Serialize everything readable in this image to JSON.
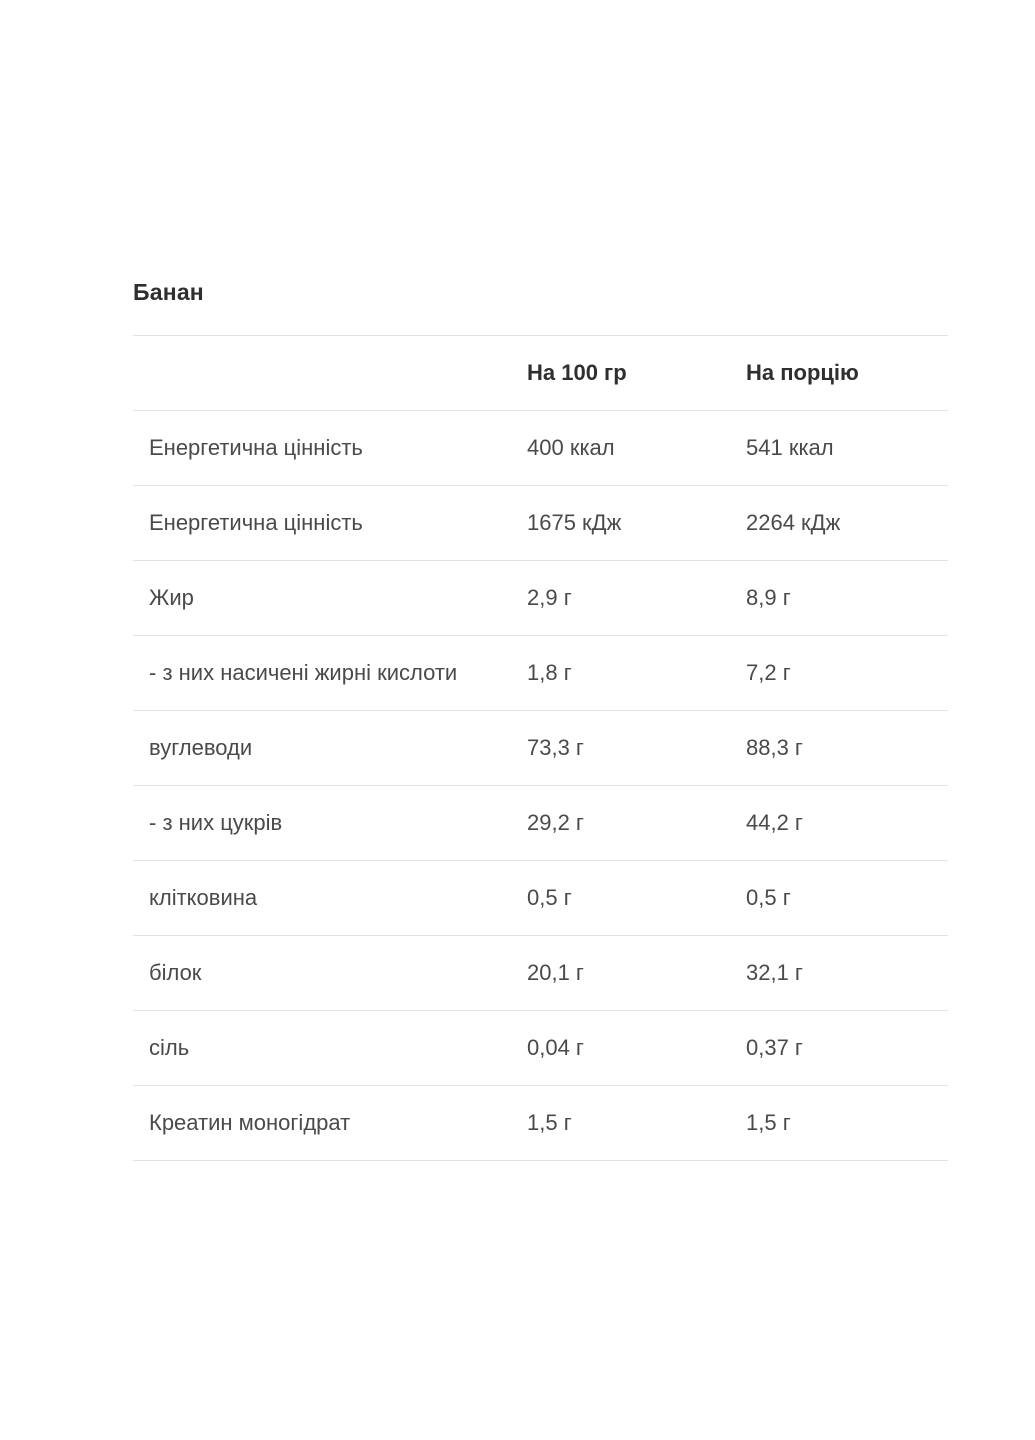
{
  "section": {
    "title": "Банан"
  },
  "table": {
    "headers": {
      "name": "",
      "per_100": "На 100 гр",
      "per_portion": "На порцію"
    },
    "rows": [
      {
        "name": "Енергетична цінність",
        "per_100": "400 ккал",
        "per_portion": "541 ккал"
      },
      {
        "name": "Енергетична цінність",
        "per_100": "1675 кДж",
        "per_portion": "2264 кДж"
      },
      {
        "name": "Жир",
        "per_100": "2,9 г",
        "per_portion": "8,9 г"
      },
      {
        "name": "- з них насичені жирні кислоти",
        "per_100": "1,8 г",
        "per_portion": "7,2 г"
      },
      {
        "name": "вуглеводи",
        "per_100": "73,3 г",
        "per_portion": "88,3 г"
      },
      {
        "name": "- з них цукрів",
        "per_100": "29,2 г",
        "per_portion": "44,2 г"
      },
      {
        "name": "клітковина",
        "per_100": "0,5 г",
        "per_portion": "0,5 г"
      },
      {
        "name": "білок",
        "per_100": "20,1 г",
        "per_portion": "32,1 г"
      },
      {
        "name": "сіль",
        "per_100": "0,04 г",
        "per_portion": "0,37 г"
      },
      {
        "name": "Креатин моногідрат",
        "per_100": "1,5 г",
        "per_portion": "1,5 г"
      }
    ]
  }
}
